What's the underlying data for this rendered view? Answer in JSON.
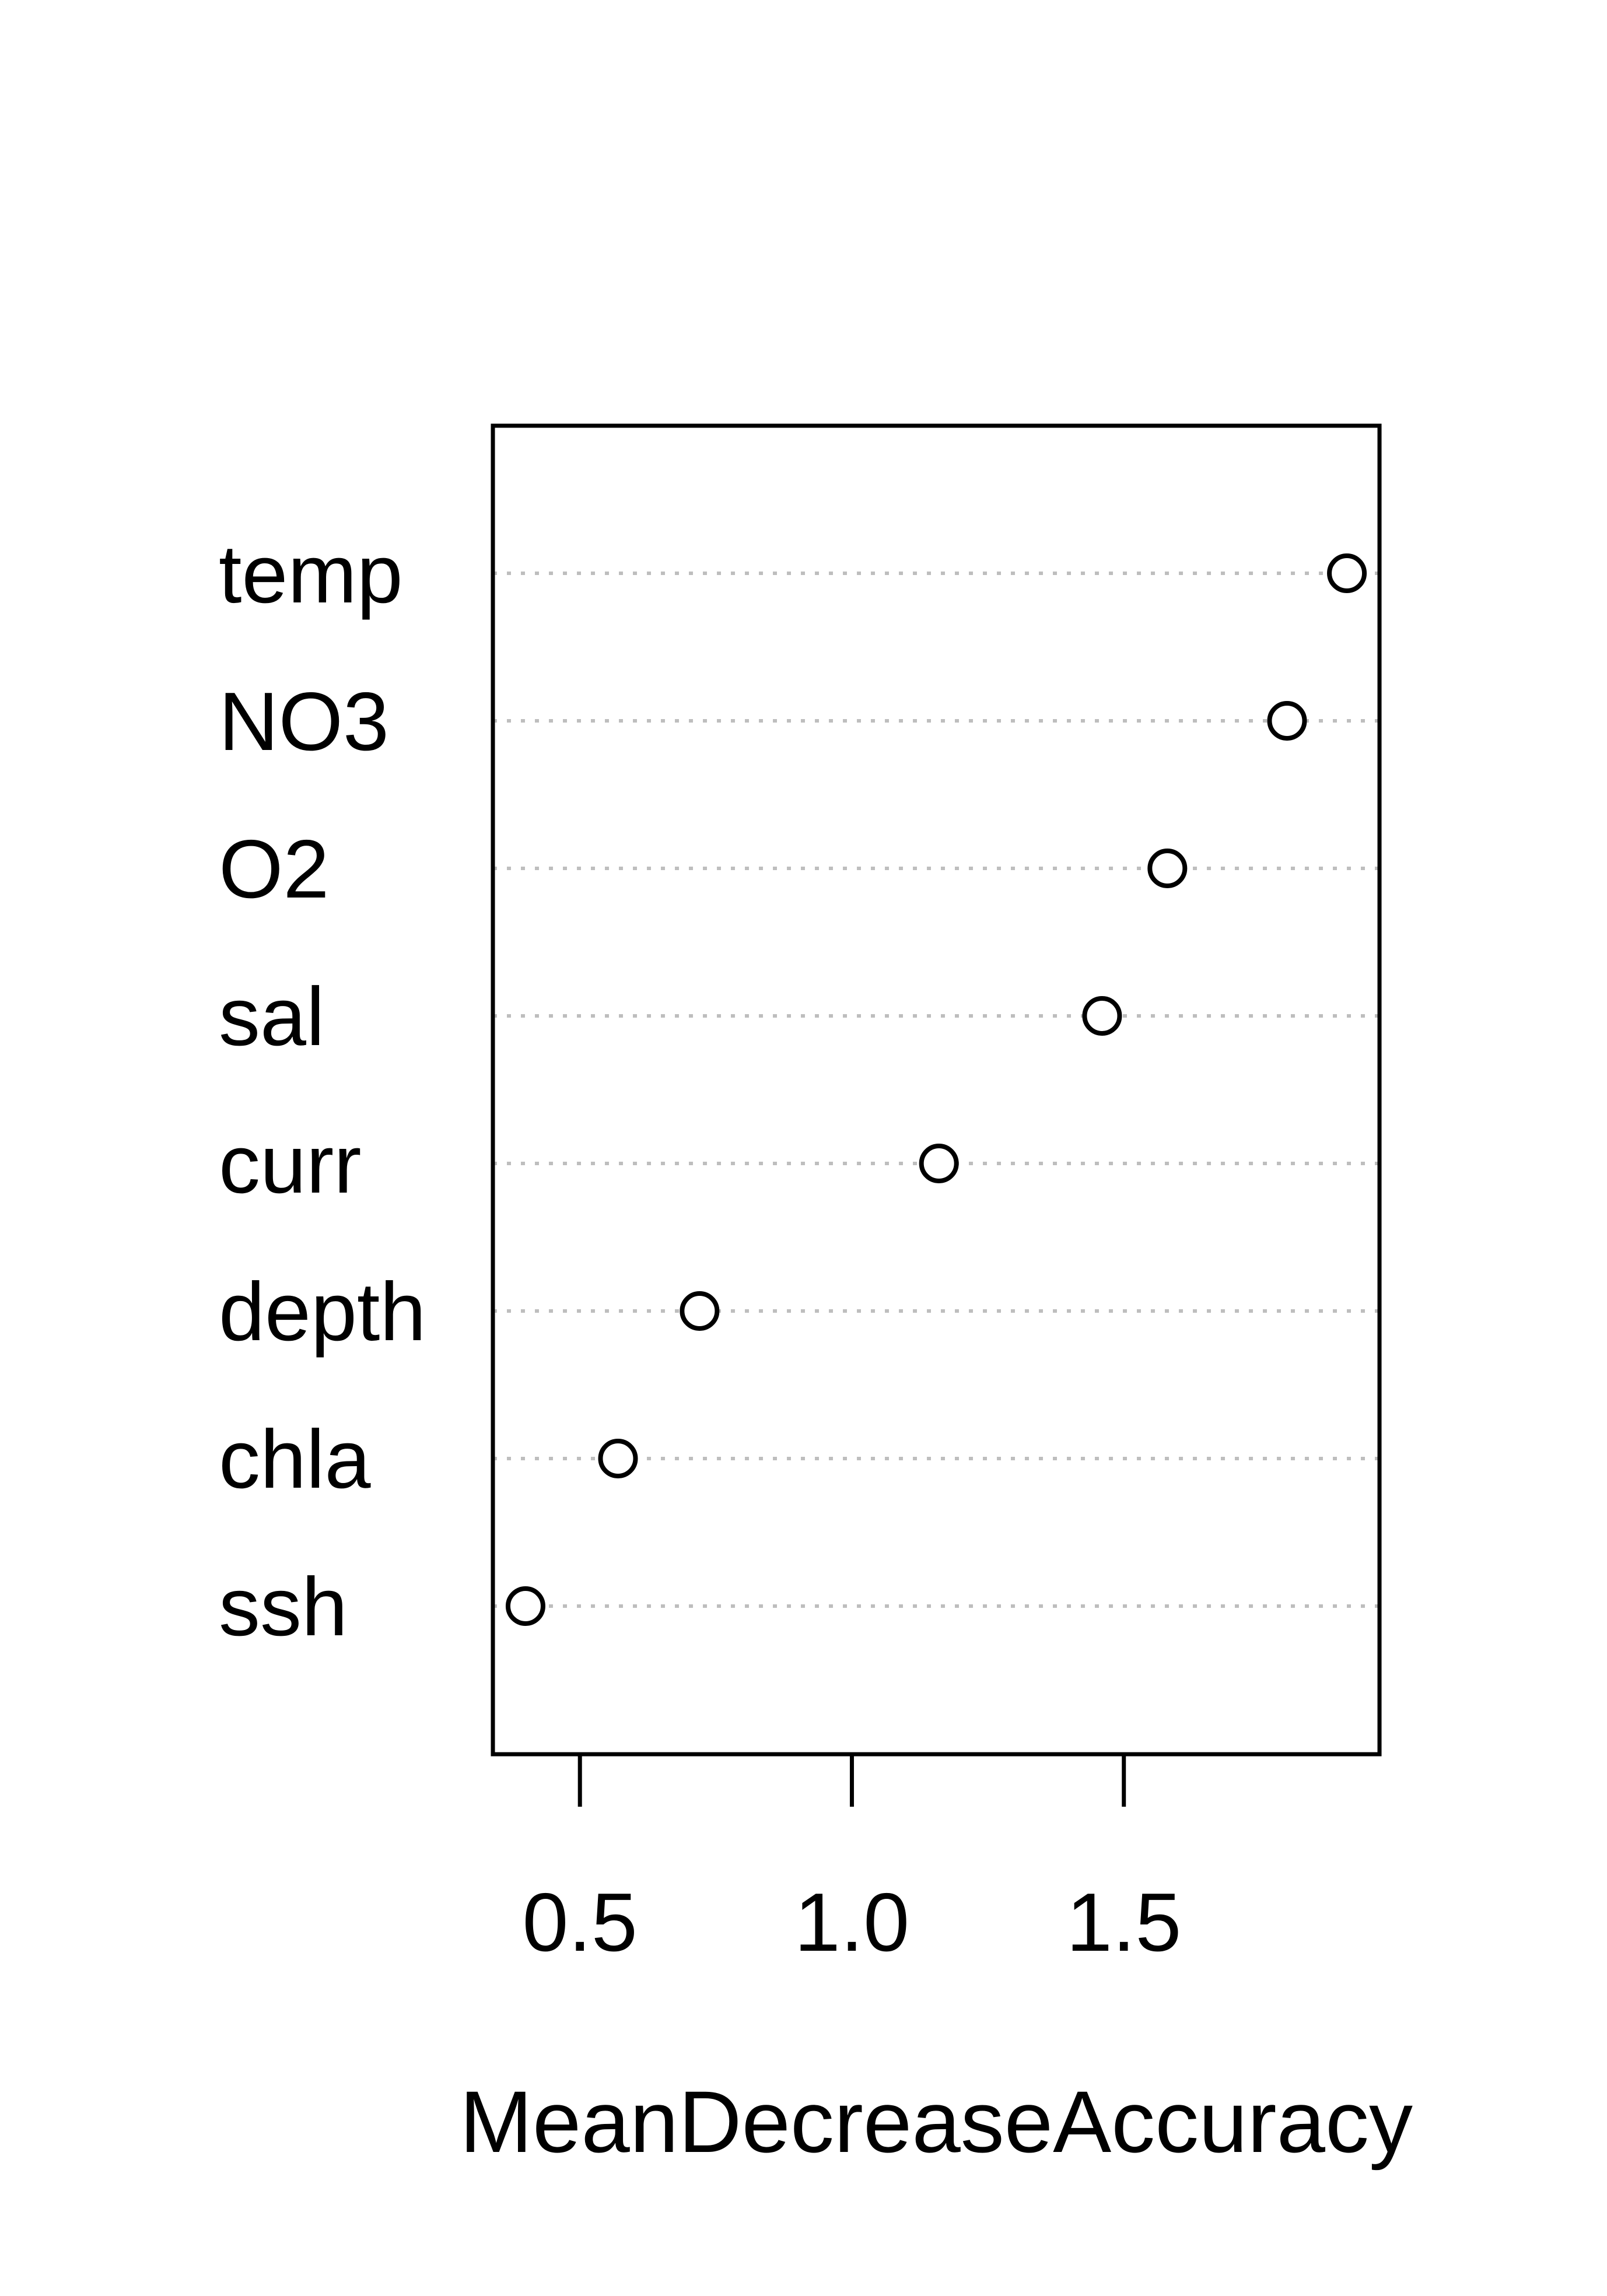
{
  "chart_data": {
    "type": "scatter",
    "style": "dotchart",
    "xlabel": "MeanDecreaseAccuracy",
    "xlim": [
      0.34,
      1.97
    ],
    "xticks": [
      0.5,
      1.0,
      1.5
    ],
    "xtick_labels": [
      "0.5",
      "1.0",
      "1.5"
    ],
    "grid": "horizontal dotted",
    "categories": [
      "temp",
      "NO3",
      "O2",
      "sal",
      "curr",
      "depth",
      "chla",
      "ssh"
    ],
    "values": [
      1.91,
      1.8,
      1.58,
      1.46,
      1.16,
      0.72,
      0.57,
      0.4
    ],
    "colors": {
      "axis": "#000000",
      "grid": "#bebebe",
      "marker_stroke": "#000000",
      "marker_fill": "#ffffff"
    }
  }
}
